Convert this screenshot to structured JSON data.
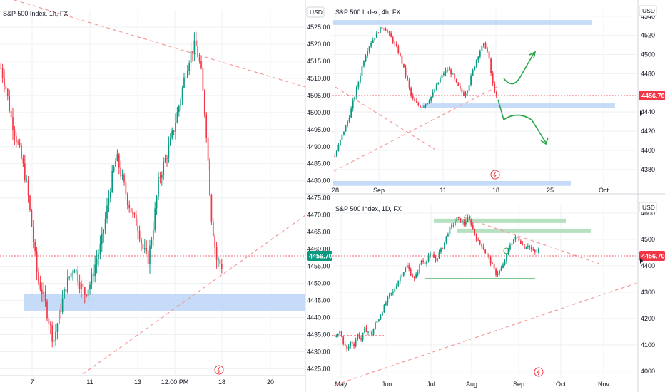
{
  "colors": {
    "up": "#089981",
    "down": "#f23645",
    "price_tag": "#f23645",
    "zone": "#bbd5f7",
    "green_zone": "#b5e1c0",
    "trend": "#f59a9a",
    "arrow": "#2aa64a",
    "grid": "#eef0f3",
    "divider": "#d1d4dc"
  },
  "chart_data": [
    {
      "type": "candlestick",
      "title": "S&P 500 Index, 1h, FX",
      "x_ticks": [
        "7",
        "11",
        "13",
        "12:00 PM",
        "18",
        "20"
      ],
      "y_ticks": [
        4425,
        4430,
        4435,
        4440,
        4445,
        4450,
        4455,
        4460,
        4465,
        4470,
        4475,
        4480,
        4485,
        4490,
        4495,
        4500,
        4505,
        4510,
        4515,
        4520,
        4525
      ],
      "ylim": [
        4423,
        4530
      ],
      "last_price": "4456.70",
      "support_zone": [
        4442,
        4447
      ],
      "close_path": [
        4513,
        4507,
        4498,
        4492,
        4486,
        4478,
        4465,
        4451,
        4447,
        4440,
        4433,
        4440,
        4447,
        4452,
        4455,
        4450,
        4447,
        4450,
        4456,
        4461,
        4470,
        4480,
        4487,
        4481,
        4475,
        4470,
        4467,
        4460,
        4457,
        4467,
        4480,
        4485,
        4490,
        4496,
        4503,
        4511,
        4517,
        4520,
        4513,
        4496,
        4470,
        4457,
        4455
      ]
    },
    {
      "type": "candlestick",
      "title": "S&P 500 Index, 4h, FX",
      "x_ticks": [
        "28",
        "Sep",
        "11",
        "18",
        "25",
        "Oct"
      ],
      "y_ticks": [
        4380,
        4400,
        4420,
        4440,
        4460,
        4480,
        4500,
        4520,
        4540
      ],
      "ylim": [
        4365,
        4548
      ],
      "last_price": "4456.70",
      "zones": [
        [
          4531,
          4536
        ],
        [
          4445,
          4451
        ],
        [
          4363,
          4368
        ]
      ],
      "close_path": [
        4394,
        4406,
        4418,
        4428,
        4442,
        4458,
        4474,
        4492,
        4505,
        4513,
        4519,
        4526,
        4529,
        4524,
        4517,
        4509,
        4500,
        4486,
        4472,
        4455,
        4449,
        4446,
        4447,
        4451,
        4457,
        4466,
        4474,
        4481,
        4485,
        4480,
        4470,
        4463,
        4458,
        4466,
        4481,
        4494,
        4505,
        4511,
        4500,
        4470,
        4456
      ]
    },
    {
      "type": "candlestick",
      "title": "S&P 500 Index, 1D, FX",
      "x_ticks": [
        "May",
        "Jun",
        "Jul",
        "Aug",
        "Sep",
        "Oct",
        "Nov"
      ],
      "y_ticks": [
        4000,
        4100,
        4200,
        4300,
        4400,
        4500,
        4600
      ],
      "ylim": [
        3975,
        4630
      ],
      "last_price": "4456.70",
      "close_path": [
        4130,
        4150,
        4110,
        4080,
        4110,
        4100,
        4140,
        4120,
        4160,
        4150,
        4140,
        4180,
        4200,
        4230,
        4260,
        4290,
        4300,
        4330,
        4360,
        4380,
        4400,
        4370,
        4350,
        4380,
        4420,
        4410,
        4440,
        4440,
        4420,
        4450,
        4470,
        4510,
        4540,
        4560,
        4580,
        4570,
        4560,
        4580,
        4560,
        4520,
        4490,
        4480,
        4450,
        4430,
        4400,
        4370,
        4380,
        4400,
        4440,
        4480,
        4500,
        4510,
        4490,
        4470,
        4480,
        4460,
        4450,
        4460
      ]
    }
  ]
}
